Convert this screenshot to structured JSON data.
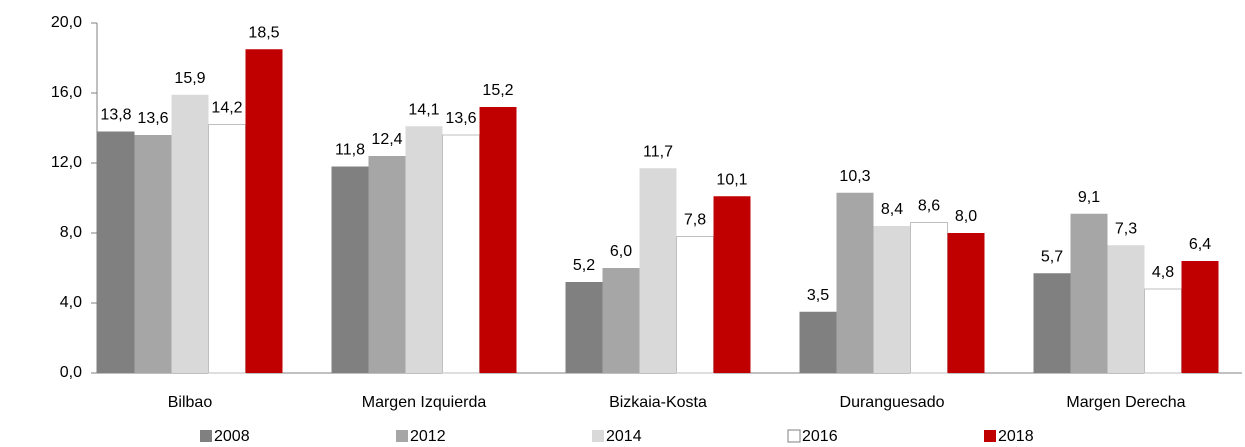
{
  "chart_data": {
    "type": "bar",
    "categories": [
      "Bilbao",
      "Margen Izquierda",
      "Bizkaia-Kosta",
      "Duranguesado",
      "Margen Derecha"
    ],
    "series": [
      {
        "name": "2008",
        "color": "#808080",
        "values": [
          13.8,
          11.8,
          5.2,
          3.5,
          5.7
        ],
        "value_labels": [
          "13,8",
          "11,8",
          "5,2",
          "3,5",
          "5,7"
        ]
      },
      {
        "name": "2012",
        "color": "#a6a6a6",
        "values": [
          13.6,
          12.4,
          6.0,
          10.3,
          9.1
        ],
        "value_labels": [
          "13,6",
          "12,4",
          "6,0",
          "10,3",
          "9,1"
        ]
      },
      {
        "name": "2014",
        "color": "#d9d9d9",
        "values": [
          15.9,
          14.1,
          11.7,
          8.4,
          7.3
        ],
        "value_labels": [
          "15,9",
          "14,1",
          "11,7",
          "8,4",
          "7,3"
        ]
      },
      {
        "name": "2016",
        "color": "#ffffff",
        "values": [
          14.2,
          13.6,
          7.8,
          8.6,
          4.8
        ],
        "value_labels": [
          "14,2",
          "13,6",
          "7,8",
          "8,6",
          "4,8"
        ]
      },
      {
        "name": "2018",
        "color": "#c00000",
        "values": [
          18.5,
          15.2,
          10.1,
          8.0,
          6.4
        ],
        "value_labels": [
          "18,5",
          "15,2",
          "10,1",
          "8,0",
          "6,4"
        ]
      }
    ],
    "ylim": [
      0,
      20
    ],
    "yticks": [
      {
        "value": 0,
        "label": "0,0"
      },
      {
        "value": 4,
        "label": "4,0"
      },
      {
        "value": 8,
        "label": "8,0"
      },
      {
        "value": 12,
        "label": "12,0"
      },
      {
        "value": 16,
        "label": "16,0"
      },
      {
        "value": 20,
        "label": "20,0"
      }
    ],
    "legend": "bottom"
  }
}
